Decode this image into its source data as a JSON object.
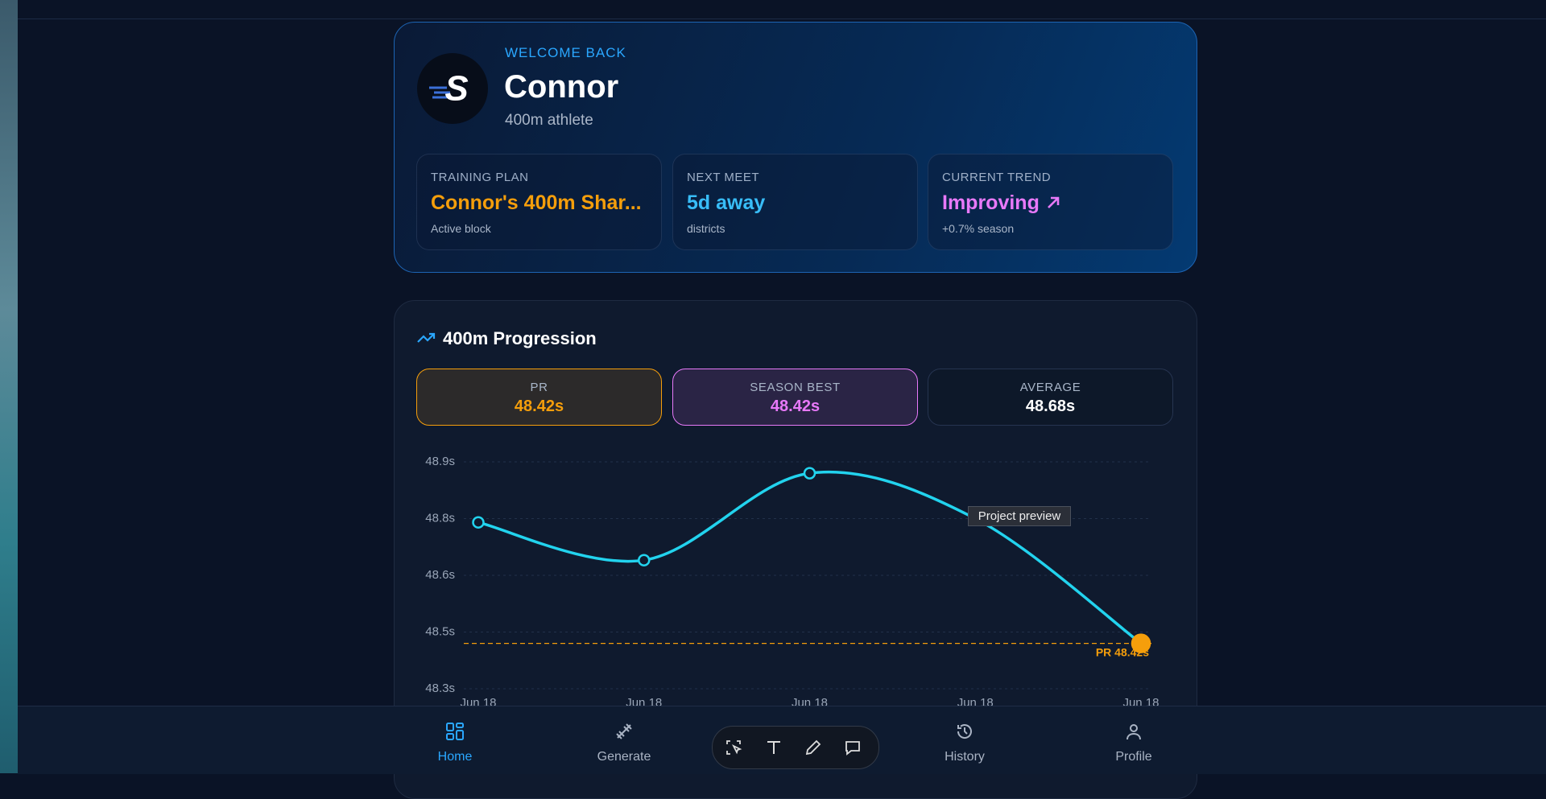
{
  "hero": {
    "eyebrow": "WELCOME BACK",
    "name": "Connor",
    "subtitle": "400m athlete",
    "stats": [
      {
        "label": "TRAINING PLAN",
        "value": "Connor's 400m Shar...",
        "note": "Active block"
      },
      {
        "label": "NEXT MEET",
        "value": "5d away",
        "note": "districts"
      },
      {
        "label": "CURRENT TREND",
        "value": "Improving",
        "note": "+0.7% season"
      }
    ]
  },
  "progression": {
    "title": "400m Progression",
    "summary": [
      {
        "label": "PR",
        "value": "48.42s"
      },
      {
        "label": "SEASON BEST",
        "value": "48.42s"
      },
      {
        "label": "AVERAGE",
        "value": "48.68s"
      }
    ]
  },
  "chart_data": {
    "type": "line",
    "categories": [
      "Jun 18",
      "Jun 18",
      "Jun 18",
      "Jun 18",
      "Jun 18"
    ],
    "values": [
      48.74,
      48.64,
      48.87,
      48.75,
      48.42
    ],
    "color": "#22d3ee",
    "ylim": [
      48.3,
      48.9
    ],
    "yticks": [
      {
        "value": 48.3,
        "label": "48.3s"
      },
      {
        "value": 48.45,
        "label": "48.5s"
      },
      {
        "value": 48.6,
        "label": "48.6s"
      },
      {
        "value": 48.75,
        "label": "48.8s"
      },
      {
        "value": 48.9,
        "label": "48.9s"
      }
    ],
    "grid": true,
    "reference_line": {
      "value": 48.42,
      "label": "PR 48.42s",
      "color": "#f59e0b"
    }
  },
  "tooltip": "Project preview",
  "nav": [
    "Home",
    "Generate",
    "History",
    "Profile"
  ]
}
